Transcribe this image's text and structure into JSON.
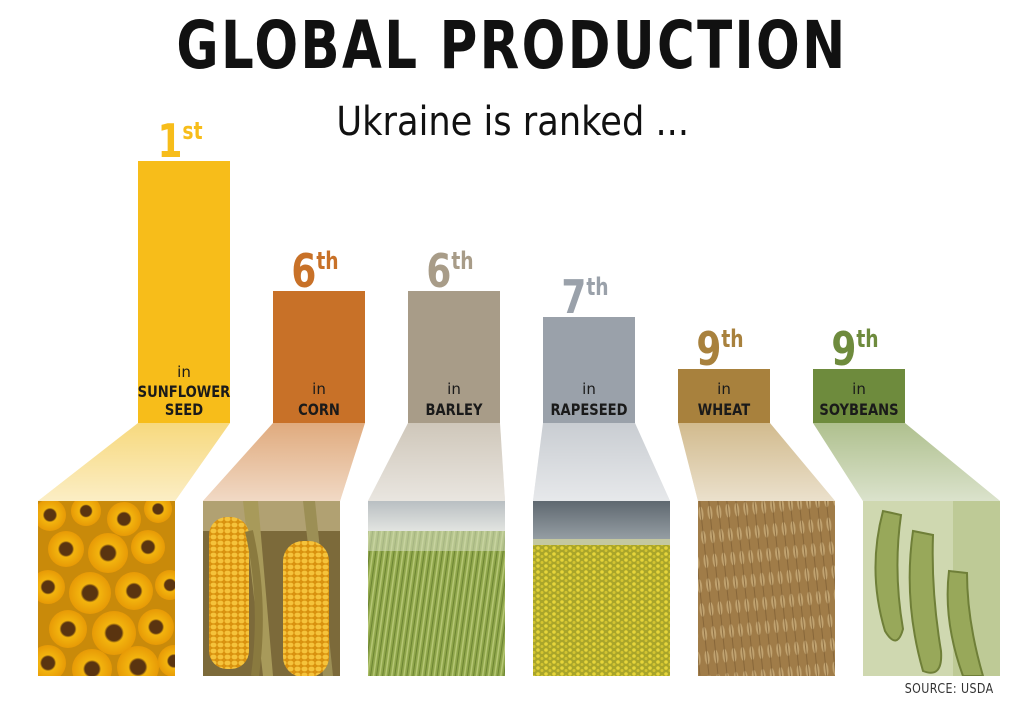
{
  "title": "GLOBAL PRODUCTION",
  "subtitle": "Ukraine is ranked  ...",
  "source": "SOURCE: USDA",
  "chart_data": {
    "type": "bar",
    "title": "GLOBAL PRODUCTION",
    "subtitle": "Ukraine is ranked  ...",
    "categories": [
      "SUNFLOWER SEED",
      "CORN",
      "BARLEY",
      "RAPESEED",
      "WHEAT",
      "SOYBEANS"
    ],
    "values": [
      1,
      6,
      6,
      7,
      9,
      9
    ],
    "scale": "higher bar = better rank",
    "bars": [
      {
        "rank_num": "1",
        "rank_suffix": "st",
        "in_label": "in",
        "label_lines": [
          "SUNFLOWER",
          "SEED"
        ],
        "value": 1,
        "color": "#F7BD1A",
        "light": "#F7D97E",
        "photo": "sunflower-photo"
      },
      {
        "rank_num": "6",
        "rank_suffix": "th",
        "in_label": "in",
        "label_lines": [
          "CORN"
        ],
        "value": 6,
        "color": "#C87128",
        "light": "#E0AB7E",
        "photo": "corn-photo"
      },
      {
        "rank_num": "6",
        "rank_suffix": "th",
        "in_label": "in",
        "label_lines": [
          "BARLEY"
        ],
        "value": 6,
        "color": "#A89C88",
        "light": "#CFC7BA",
        "photo": "barley-field-photo"
      },
      {
        "rank_num": "7",
        "rank_suffix": "th",
        "in_label": "in",
        "label_lines": [
          "RAPESEED"
        ],
        "value": 7,
        "color": "#9AA1AA",
        "light": "#C9CDD2",
        "photo": "rapeseed-field-photo"
      },
      {
        "rank_num": "9",
        "rank_suffix": "th",
        "in_label": "in",
        "label_lines": [
          "WHEAT"
        ],
        "value": 9,
        "color": "#A8813D",
        "light": "#D2BB8E",
        "photo": "wheat-photo"
      },
      {
        "rank_num": "9",
        "rank_suffix": "th",
        "in_label": "in",
        "label_lines": [
          "SOYBEANS"
        ],
        "value": 9,
        "color": "#6E8B3D",
        "light": "#AFC08E",
        "photo": "soybean-photo"
      }
    ]
  }
}
